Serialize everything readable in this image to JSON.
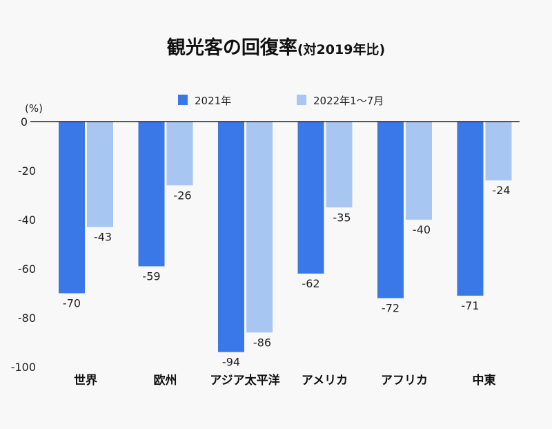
{
  "chart_data": {
    "type": "bar",
    "title": "観光客の回復率",
    "subtitle": "(対2019年比)",
    "ylabel": "(%)",
    "ylim": [
      -100,
      0
    ],
    "yticks": [
      0,
      -20,
      -40,
      -60,
      -80,
      -100
    ],
    "legend_position": "top",
    "grid": false,
    "categories": [
      "世界",
      "欧州",
      "アジア太平洋",
      "アメリカ",
      "アフリカ",
      "中東"
    ],
    "series": [
      {
        "name": "2021年",
        "color": "#3b78e7",
        "values": [
          -70,
          -59,
          -94,
          -62,
          -72,
          -71
        ]
      },
      {
        "name": "2022年1〜7月",
        "color": "#a7c7f2",
        "values": [
          -43,
          -26,
          -86,
          -35,
          -40,
          -24
        ]
      }
    ]
  }
}
